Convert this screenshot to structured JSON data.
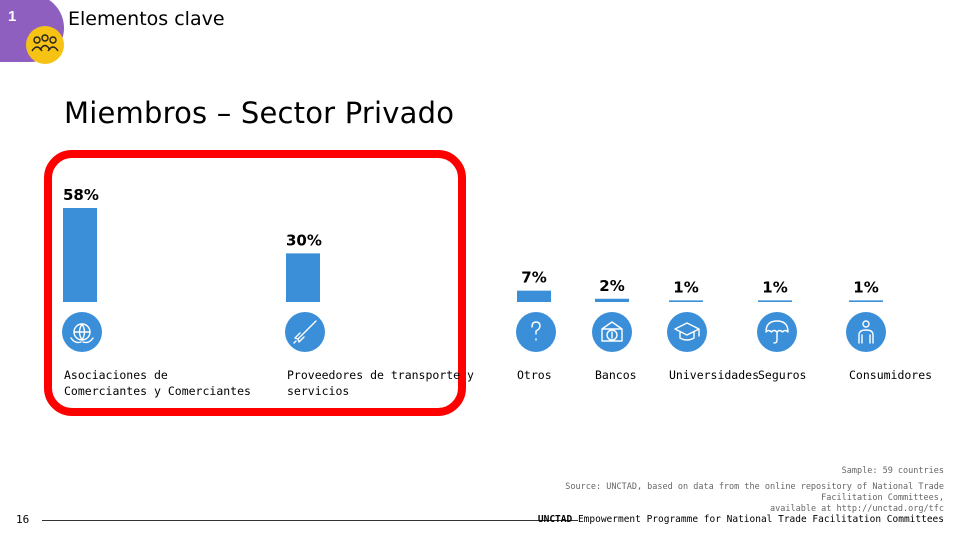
{
  "header": {
    "section_number": "1",
    "section_title": "Elementos clave",
    "section_icon": "people-group-icon"
  },
  "page_title": "Miembros – Sector Privado",
  "chart_data": {
    "type": "bar",
    "categories": [
      "Asociaciones de Comerciantes y Comerciantes",
      "Proveedores de transporte y servicios",
      "Otros",
      "Bancos",
      "Universidades",
      "Seguros",
      "Consumidores"
    ],
    "values": [
      58,
      30,
      7,
      2,
      1,
      1,
      1
    ],
    "value_labels": [
      "58%",
      "30%",
      "7%",
      "2%",
      "1%",
      "1%",
      "1%"
    ],
    "icons": [
      "globe-hands-icon",
      "rocket-icon",
      "question-mark-icon",
      "bank-money-icon",
      "graduation-cap-icon",
      "umbrella-icon",
      "person-icon"
    ],
    "ylim": [
      0,
      58
    ],
    "bar_color": "#3a8fd8",
    "highlight_color": "#ff0000"
  },
  "notes": {
    "sample": "Sample: 59 countries",
    "source_line1": "Source: UNCTAD, based on data from the online repository of National Trade Facilitation Committees,",
    "source_line2": "available at http://unctad.org/tfc"
  },
  "footer": {
    "page_number": "16",
    "brand": "UNCTAD",
    "programme": " Empowerment Programme for National Trade Facilitation Committees"
  }
}
